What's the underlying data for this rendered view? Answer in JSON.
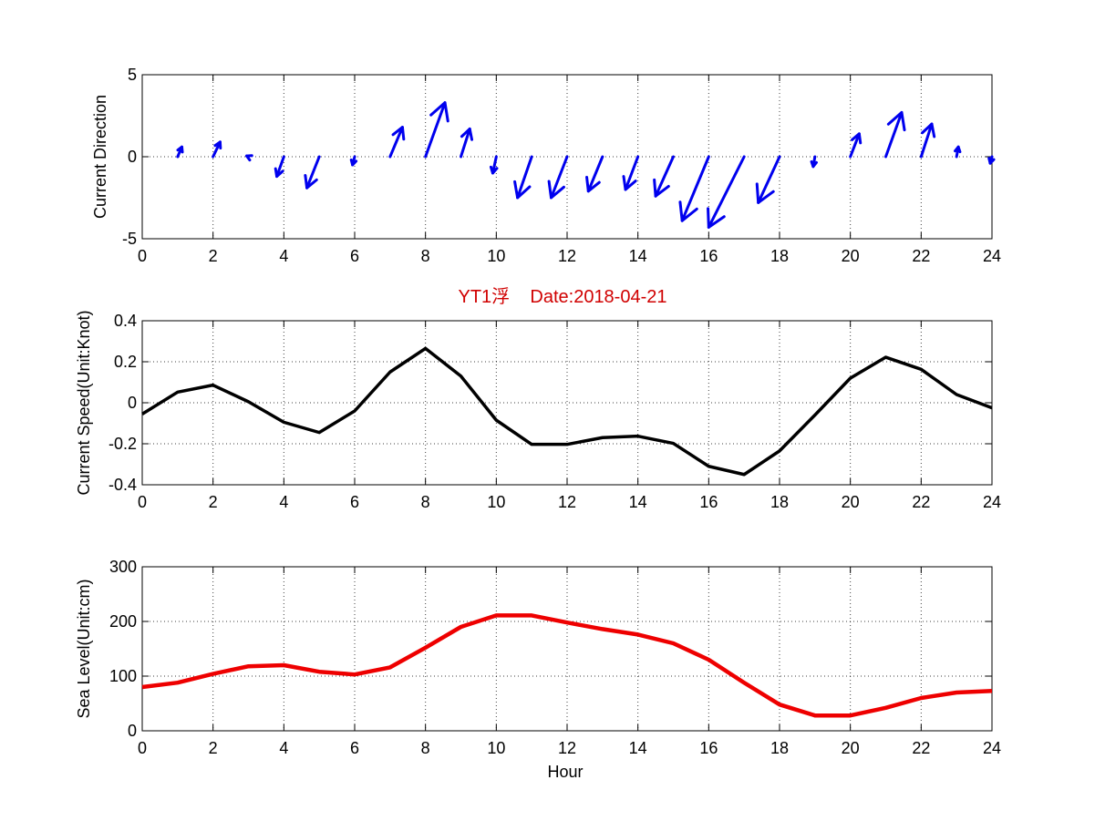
{
  "figure": {
    "title": "YT1浮    Date:2018-04-21",
    "title_color": "#d00000",
    "xlabel": "Hour"
  },
  "chart_data": [
    {
      "type": "quiver",
      "ylabel": "Current Direction",
      "xlim": [
        0,
        24
      ],
      "ylim": [
        -5,
        5
      ],
      "xticks": [
        0,
        2,
        4,
        6,
        8,
        10,
        12,
        14,
        16,
        18,
        20,
        22,
        24
      ],
      "yticks": [
        -5,
        0,
        5
      ],
      "grid": true,
      "color": "#0000ee",
      "series": [
        {
          "x": [
            1,
            2,
            3,
            4,
            5,
            6,
            7,
            8,
            9,
            10,
            11,
            12,
            13,
            14,
            15,
            16,
            17,
            18,
            19,
            20,
            21,
            22,
            23,
            24
          ],
          "u": [
            0.12,
            0.2,
            -0.05,
            -0.2,
            -0.35,
            -0.06,
            0.35,
            0.55,
            0.25,
            -0.1,
            -0.4,
            -0.45,
            -0.4,
            -0.35,
            -0.5,
            -0.75,
            -1.0,
            -0.6,
            -0.05,
            0.25,
            0.45,
            0.3,
            0.05,
            -0.05
          ],
          "v": [
            0.6,
            0.9,
            0.05,
            -1.2,
            -1.9,
            -0.5,
            1.8,
            3.3,
            1.7,
            -1.0,
            -2.5,
            -2.5,
            -2.1,
            -2.0,
            -2.4,
            -3.9,
            -4.3,
            -2.8,
            -0.6,
            1.4,
            2.7,
            2.0,
            0.6,
            -0.4
          ]
        }
      ]
    },
    {
      "type": "line",
      "ylabel": "Current Speed(Unit:Knot)",
      "xlim": [
        0,
        24
      ],
      "ylim": [
        -0.4,
        0.4
      ],
      "xticks": [
        0,
        2,
        4,
        6,
        8,
        10,
        12,
        14,
        16,
        18,
        20,
        22,
        24
      ],
      "yticks": [
        -0.4,
        -0.2,
        0,
        0.2,
        0.4
      ],
      "grid": true,
      "series": [
        {
          "color": "#000000",
          "x": [
            0,
            1,
            2,
            3,
            4,
            5,
            6,
            7,
            8,
            9,
            10,
            11,
            12,
            13,
            14,
            15,
            16,
            17,
            18,
            19,
            20,
            21,
            22,
            23,
            24
          ],
          "values": [
            -0.055,
            0.052,
            0.086,
            0.005,
            -0.095,
            -0.145,
            -0.04,
            0.15,
            0.265,
            0.13,
            -0.085,
            -0.203,
            -0.203,
            -0.17,
            -0.163,
            -0.198,
            -0.31,
            -0.35,
            -0.235,
            -0.06,
            0.12,
            0.222,
            0.163,
            0.04,
            -0.025
          ]
        }
      ]
    },
    {
      "type": "line",
      "ylabel": "Sea Level(Unit:cm)",
      "xlabel": "Hour",
      "xlim": [
        0,
        24
      ],
      "ylim": [
        0,
        300
      ],
      "xticks": [
        0,
        2,
        4,
        6,
        8,
        10,
        12,
        14,
        16,
        18,
        20,
        22,
        24
      ],
      "yticks": [
        0,
        100,
        200,
        300
      ],
      "grid": true,
      "series": [
        {
          "color": "#ee0000",
          "x": [
            0,
            1,
            2,
            3,
            4,
            5,
            6,
            7,
            8,
            9,
            10,
            11,
            12,
            13,
            14,
            15,
            16,
            17,
            18,
            19,
            20,
            21,
            22,
            23,
            24
          ],
          "values": [
            80,
            88,
            104,
            118,
            120,
            108,
            103,
            116,
            152,
            190,
            211,
            211,
            198,
            186,
            176,
            160,
            130,
            88,
            48,
            28,
            28,
            42,
            60,
            70,
            73
          ]
        }
      ]
    }
  ]
}
